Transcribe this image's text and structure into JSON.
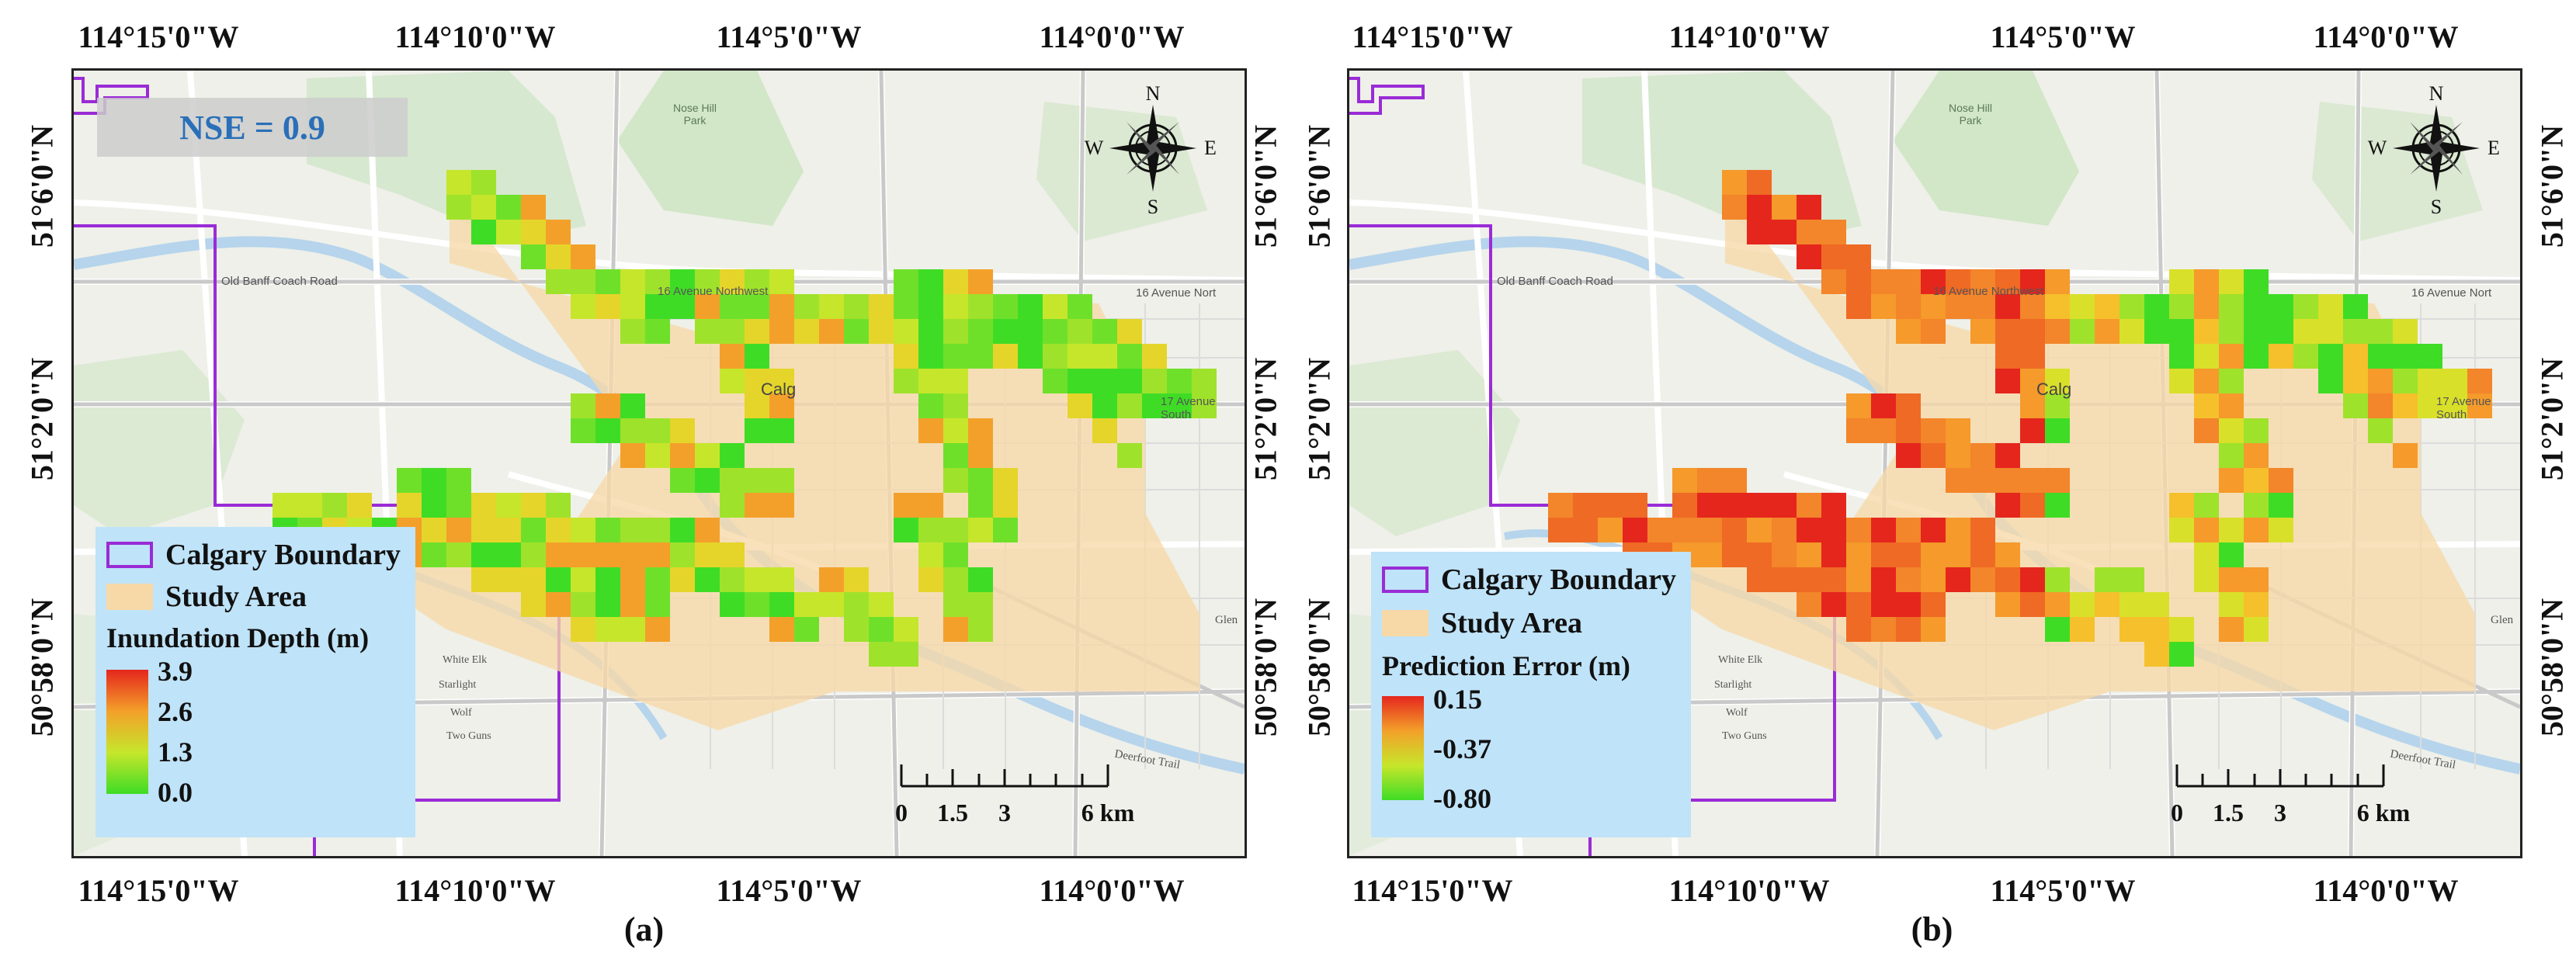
{
  "coords": {
    "lon_top": [
      "114°15'0\"W",
      "114°10'0\"W",
      "114°5'0\"W",
      "114°0'0\"W"
    ],
    "lon_bottom": [
      "114°15'0\"W",
      "114°10'0\"W",
      "114°5'0\"W",
      "114°0'0\"W"
    ],
    "lat_left": [
      "51°6'0\"N",
      "51°2'0\"N",
      "50°58'0\"N"
    ],
    "lat_right": [
      "51°6'0\"N",
      "51°2'0\"N",
      "50°58'0\"N"
    ]
  },
  "map_labels": {
    "road_1": "Old Banff Coach Road",
    "road_2": "16 Avenue Northwest",
    "road_3": "16 Avenue Nort",
    "road_4": "17 Avenue South",
    "park": "Nose Hill Park",
    "city": "Calg",
    "area_1": "White Elk",
    "area_2": "Starlight",
    "area_3": "Wolf",
    "area_4": "Two Guns",
    "glen": "Glen",
    "deerfoot": "Deerfoot Trail"
  },
  "compass": {
    "n": "N",
    "s": "S",
    "e": "E",
    "w": "W"
  },
  "scalebar": {
    "labels": [
      "0",
      "1.5",
      "3",
      "6 km"
    ]
  },
  "legend_common": {
    "boundary_label": "Calgary Boundary",
    "study_label": "Study Area"
  },
  "panel_a": {
    "label": "(a)",
    "nse": "NSE = 0.9",
    "legend": {
      "title": "Inundation Depth (m)",
      "ticks": [
        "3.9",
        "2.6",
        "1.3",
        "0.0"
      ]
    }
  },
  "panel_b": {
    "label": "(b)",
    "legend": {
      "title": "Prediction Error (m)",
      "ticks": [
        "0.15",
        "-0.37",
        "-0.80"
      ]
    }
  },
  "colors": {
    "boundary": "#9a2bd6",
    "study_area": "#f7d9a8",
    "ramp_high": "#e5261d",
    "ramp_mid": "#f3a02a",
    "ramp_midlow": "#c6e62b",
    "ramp_low": "#3fdc26",
    "nse_text": "#2a6fb8",
    "legend_bg": "#bfe3f8"
  }
}
